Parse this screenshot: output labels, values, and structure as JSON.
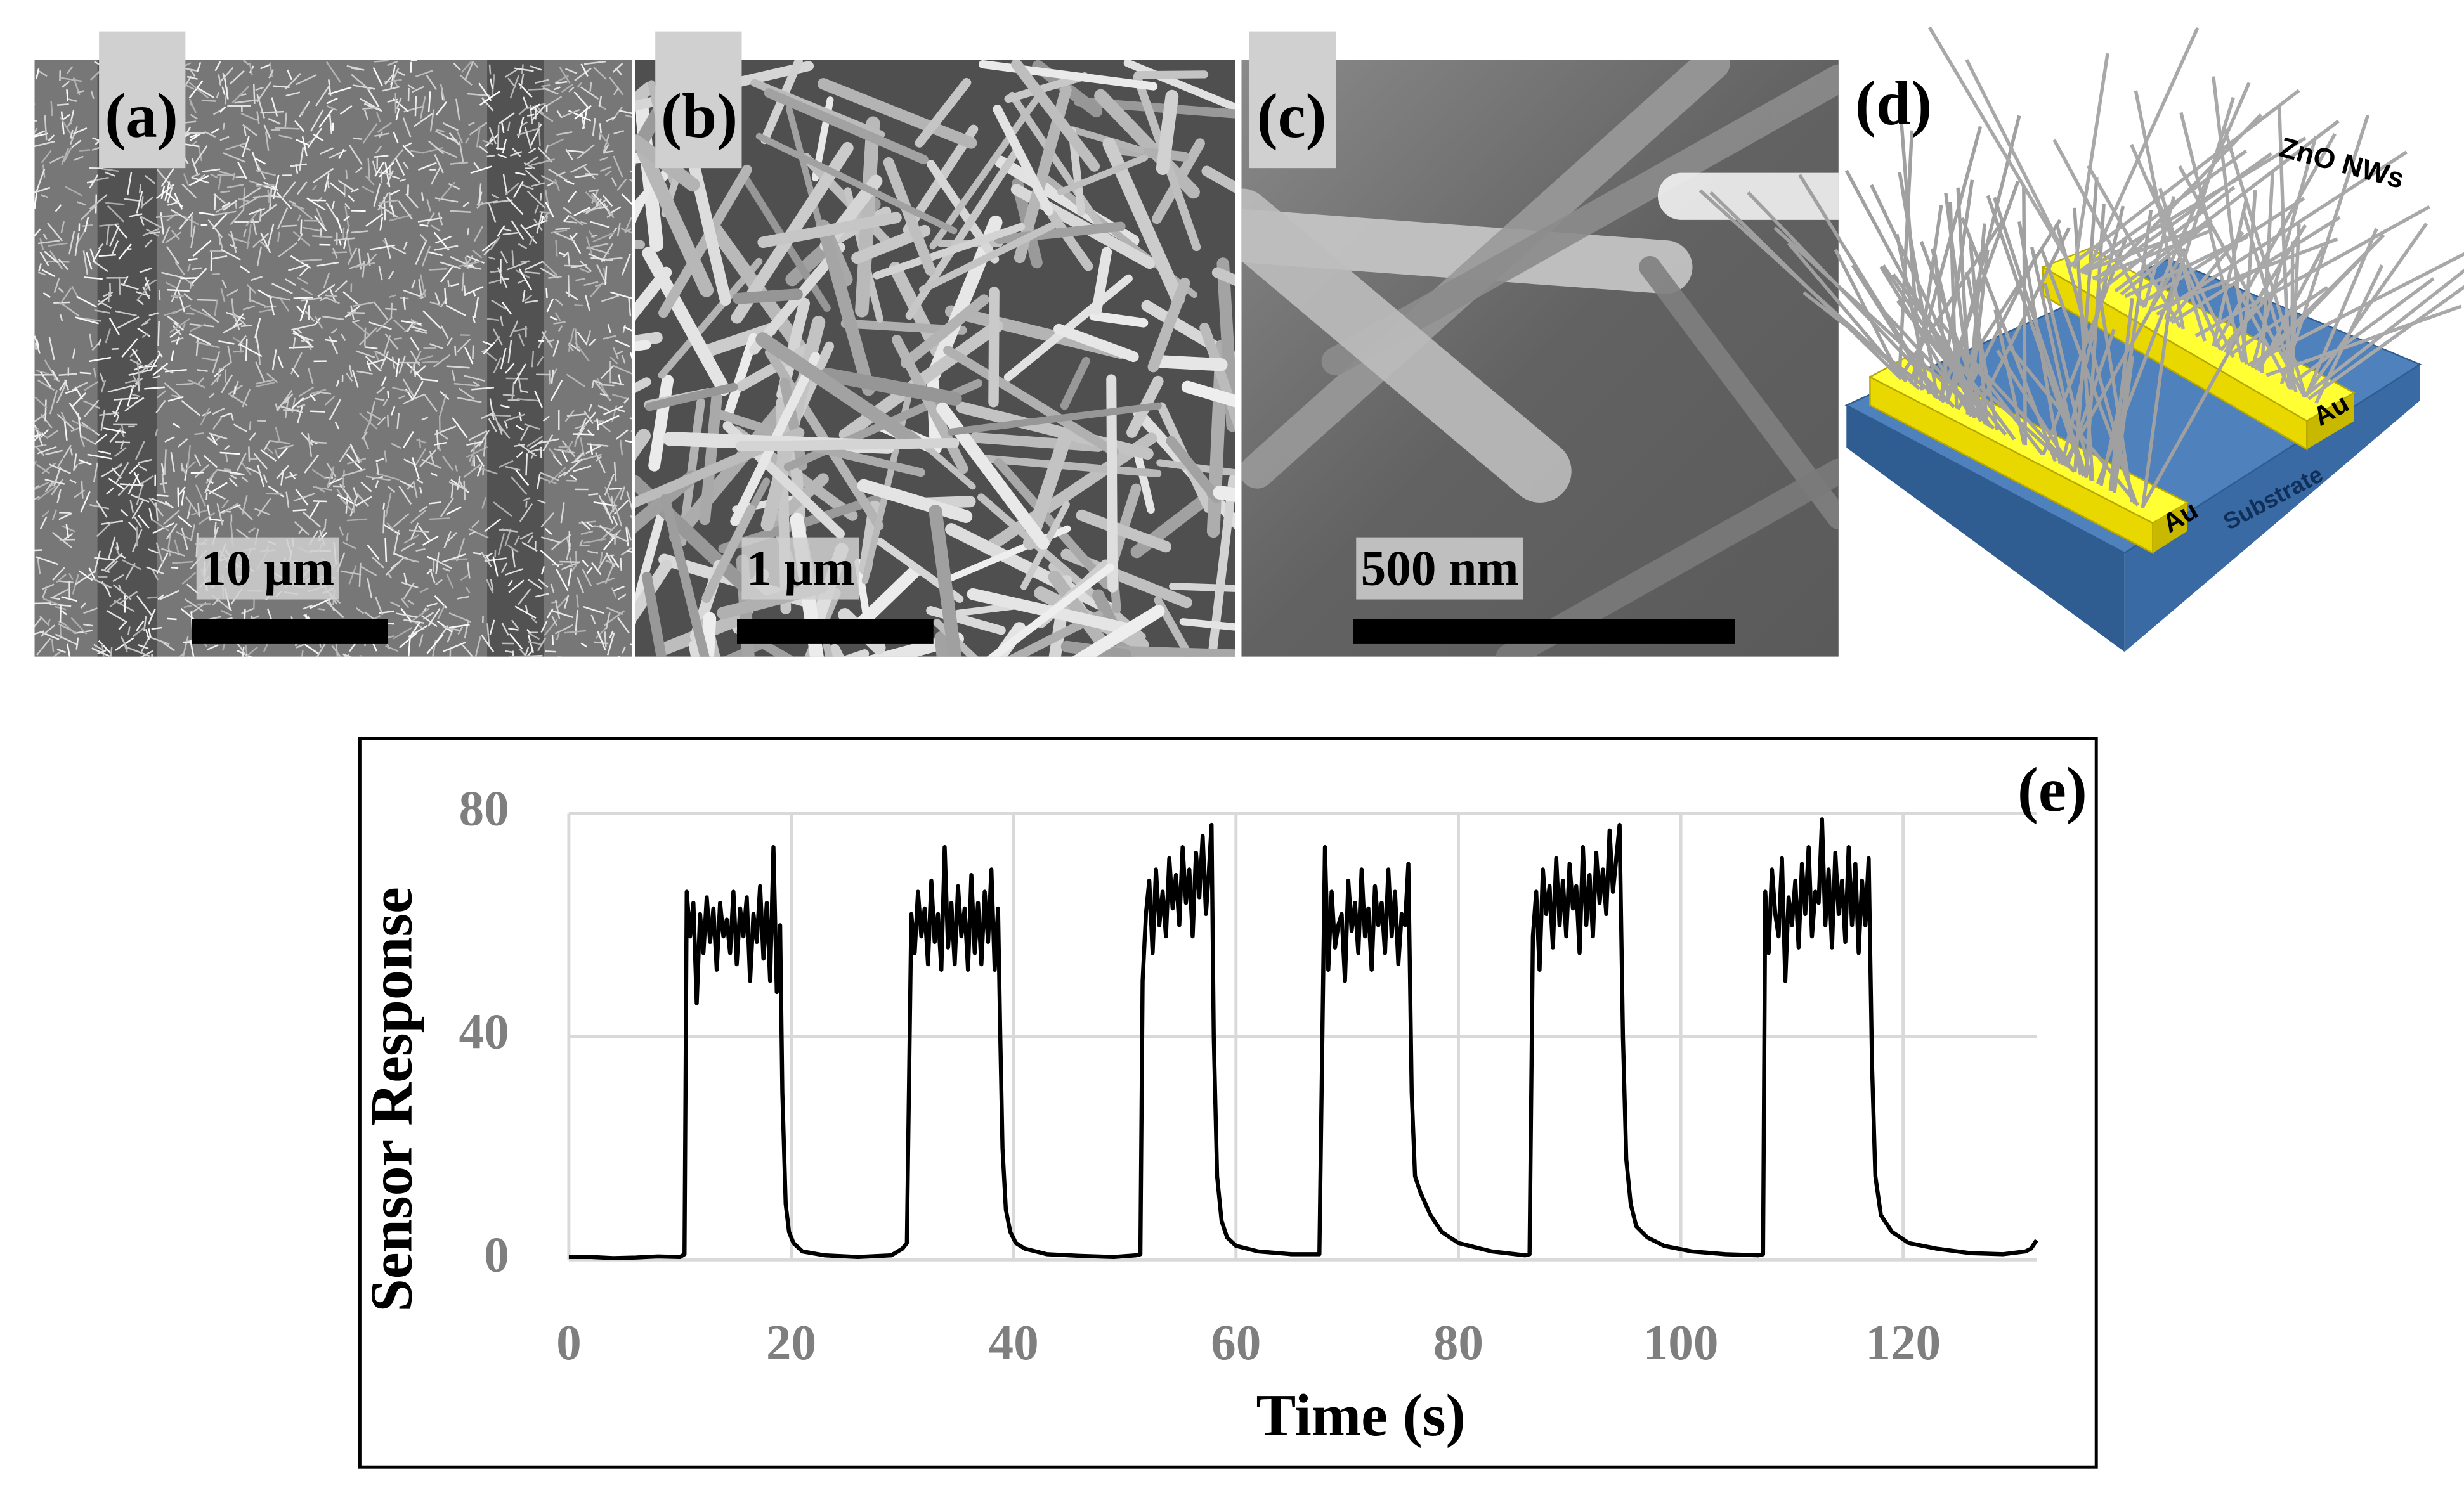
{
  "panels": [
    {
      "label": "(a)",
      "scale": "10 μm"
    },
    {
      "label": "(b)",
      "scale": "1 μm"
    },
    {
      "label": "(c)",
      "scale": "500 nm"
    }
  ],
  "schematic": {
    "label": "(d)",
    "nanowires": "ZnO NWs",
    "electrodes": [
      "Au",
      "Au"
    ],
    "substrate": "Substrate"
  },
  "chart_data": {
    "type": "line",
    "label": "(e)",
    "x_label": "Time (s)",
    "y_label": "Sensor Response",
    "xlim": [
      0,
      132
    ],
    "ylim": [
      0,
      80
    ],
    "xticks": [
      0,
      20,
      40,
      60,
      80,
      100,
      120
    ],
    "yticks": [
      0,
      40,
      80
    ],
    "grid": true,
    "x": [
      0,
      2,
      4,
      6,
      8,
      10,
      10.4,
      10.6,
      10.9,
      11.2,
      11.5,
      11.8,
      12.1,
      12.4,
      12.7,
      13,
      13.3,
      13.6,
      13.9,
      14.2,
      14.5,
      14.8,
      15.1,
      15.4,
      15.7,
      16,
      16.3,
      16.6,
      16.9,
      17.2,
      17.5,
      17.8,
      18.1,
      18.4,
      18.7,
      19,
      19.2,
      19.5,
      19.8,
      20.2,
      21,
      23,
      26,
      29,
      30,
      30.4,
      30.8,
      31.1,
      31.4,
      31.7,
      32,
      32.3,
      32.6,
      32.9,
      33.2,
      33.5,
      33.8,
      34.1,
      34.4,
      34.7,
      35,
      35.3,
      35.6,
      35.9,
      36.2,
      36.5,
      36.8,
      37.1,
      37.4,
      37.7,
      38,
      38.3,
      38.6,
      38.8,
      39,
      39.3,
      39.7,
      40.2,
      41,
      43,
      46,
      49,
      51,
      51.4,
      51.6,
      51.9,
      52.2,
      52.5,
      52.8,
      53.1,
      53.4,
      53.7,
      54,
      54.3,
      54.6,
      54.9,
      55.2,
      55.5,
      55.8,
      56.1,
      56.4,
      56.7,
      57,
      57.3,
      57.6,
      57.8,
      58,
      58.3,
      58.7,
      59.2,
      60,
      62,
      65,
      67.5,
      68,
      68.3,
      68.6,
      68.9,
      69.2,
      69.5,
      69.8,
      70.1,
      70.4,
      70.7,
      71,
      71.3,
      71.6,
      71.9,
      72.2,
      72.5,
      72.8,
      73.1,
      73.4,
      73.7,
      74,
      74.3,
      74.6,
      74.9,
      75.2,
      75.5,
      75.8,
      76.1,
      76.6,
      77.5,
      78.5,
      80,
      83,
      86,
      86.4,
      86.7,
      87,
      87.3,
      87.6,
      87.9,
      88.2,
      88.5,
      88.8,
      89.1,
      89.4,
      89.7,
      90,
      90.3,
      90.6,
      90.9,
      91.2,
      91.5,
      91.8,
      92.1,
      92.4,
      92.7,
      93,
      93.3,
      93.6,
      93.9,
      94.2,
      94.5,
      94.8,
      95.1,
      95.5,
      96,
      97,
      98.5,
      101,
      104,
      107,
      107.4,
      107.6,
      107.9,
      108.2,
      108.5,
      108.8,
      109.1,
      109.4,
      109.7,
      110,
      110.3,
      110.6,
      110.9,
      111.2,
      111.5,
      111.8,
      112.1,
      112.4,
      112.7,
      113,
      113.3,
      113.6,
      113.9,
      114.2,
      114.5,
      114.8,
      115.1,
      115.4,
      115.7,
      116,
      116.3,
      116.6,
      116.9,
      117.2,
      117.5,
      118,
      119,
      120.5,
      123,
      126,
      129,
      131,
      131.5,
      132
    ],
    "series": [
      {
        "color": "#000000",
        "values": [
          0.5,
          0.5,
          0.3,
          0.4,
          0.6,
          0.5,
          1,
          66,
          58,
          64,
          46,
          62,
          55,
          65,
          57,
          63,
          52,
          64,
          58,
          61,
          55,
          66,
          53,
          63,
          58,
          65,
          50,
          62,
          57,
          67,
          54,
          64,
          50,
          74,
          48,
          60,
          30,
          10,
          5,
          3,
          1.5,
          0.8,
          0.5,
          0.8,
          2,
          3,
          62,
          55,
          66,
          58,
          63,
          53,
          68,
          57,
          62,
          52,
          74,
          56,
          64,
          53,
          67,
          58,
          63,
          52,
          69,
          55,
          64,
          53,
          66,
          57,
          70,
          52,
          63,
          40,
          20,
          9,
          5,
          3,
          2,
          1,
          0.7,
          0.5,
          0.8,
          1,
          50,
          62,
          68,
          55,
          70,
          60,
          66,
          58,
          72,
          63,
          69,
          60,
          74,
          64,
          70,
          58,
          73,
          65,
          76,
          62,
          71,
          78,
          40,
          15,
          7,
          4,
          2.5,
          1.5,
          1,
          1,
          74,
          52,
          66,
          56,
          60,
          62,
          50,
          68,
          59,
          64,
          55,
          70,
          58,
          63,
          52,
          67,
          60,
          64,
          55,
          70,
          58,
          66,
          53,
          62,
          60,
          71,
          30,
          15,
          12,
          8,
          5,
          3,
          1.5,
          0.8,
          1,
          58,
          66,
          52,
          70,
          62,
          67,
          56,
          72,
          60,
          68,
          58,
          71,
          63,
          67,
          55,
          74,
          60,
          69,
          58,
          73,
          64,
          70,
          62,
          77,
          66,
          72,
          78,
          40,
          18,
          10,
          6,
          4,
          2.5,
          1.5,
          1,
          0.8,
          1,
          66,
          55,
          70,
          62,
          58,
          72,
          50,
          65,
          60,
          68,
          56,
          71,
          62,
          74,
          58,
          66,
          64,
          79,
          60,
          70,
          56,
          73,
          62,
          68,
          57,
          74,
          60,
          71,
          55,
          68,
          60,
          72,
          35,
          15,
          8,
          5,
          3,
          2,
          1.2,
          1,
          1.5,
          2,
          3.5
        ]
      }
    ]
  }
}
